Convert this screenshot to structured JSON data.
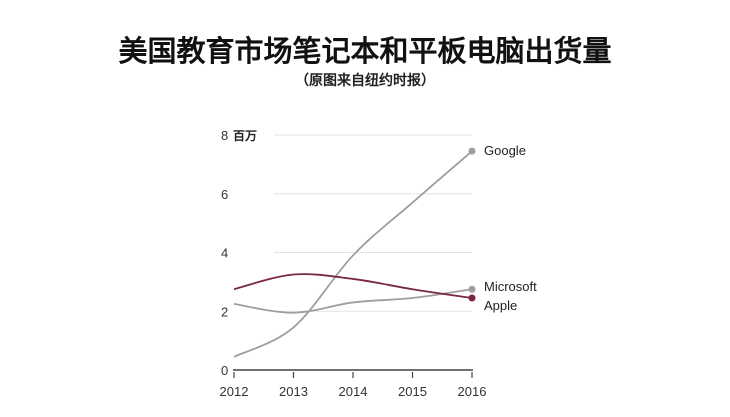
{
  "chart_data": {
    "type": "line",
    "title": "美国教育市场笔记本和平板电脑出货量",
    "subtitle": "（原图来自纽约时报）",
    "ylabel": "百万",
    "x": [
      2012,
      2013,
      2014,
      2015,
      2016
    ],
    "xticks": [
      "2012",
      "2013",
      "2014",
      "2015",
      "2016"
    ],
    "yticks": [
      "0",
      "2",
      "4",
      "6",
      "8"
    ],
    "ylim": [
      0,
      8
    ],
    "grid": true,
    "series": [
      {
        "name": "Google",
        "values": [
          0.45,
          1.45,
          3.9,
          5.7,
          7.45
        ],
        "color": "#9e9e9e"
      },
      {
        "name": "Microsoft",
        "values": [
          2.25,
          1.95,
          2.3,
          2.45,
          2.75
        ],
        "color": "#9e9e9e"
      },
      {
        "name": "Apple",
        "values": [
          2.75,
          3.25,
          3.1,
          2.75,
          2.45
        ],
        "color": "#7a2840"
      }
    ]
  }
}
